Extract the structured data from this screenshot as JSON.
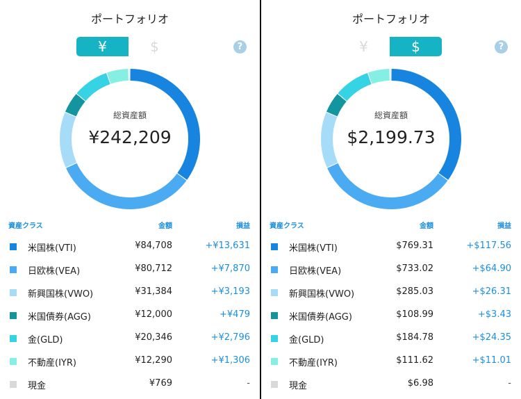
{
  "panels": [
    {
      "title": "ポートフォリオ",
      "toggle": {
        "left_label": "¥",
        "right_label": "$",
        "active": "left"
      },
      "help_label": "?",
      "total_label": "総資産額",
      "total_value": "¥242,209",
      "headers": {
        "asset_class": "資産クラス",
        "amount": "金額",
        "pl": "損益"
      },
      "rows": [
        {
          "name": "米国株(VTI)",
          "amount": "¥84,708",
          "pl": "+¥13,631",
          "color": "#1785e0"
        },
        {
          "name": "日欧株(VEA)",
          "amount": "¥80,712",
          "pl": "+¥7,870",
          "color": "#4aaaf2"
        },
        {
          "name": "新興国株(VWO)",
          "amount": "¥31,384",
          "pl": "+¥3,193",
          "color": "#a6dcf8"
        },
        {
          "name": "米国債券(AGG)",
          "amount": "¥12,000",
          "pl": "+¥479",
          "color": "#13959f"
        },
        {
          "name": "金(GLD)",
          "amount": "¥20,346",
          "pl": "+¥2,796",
          "color": "#35d3e3"
        },
        {
          "name": "不動産(IYR)",
          "amount": "¥12,290",
          "pl": "+¥1,306",
          "color": "#84efe2"
        },
        {
          "name": "現金",
          "amount": "¥769",
          "pl": "-",
          "color": "#d9d9d9"
        }
      ]
    },
    {
      "title": "ポートフォリオ",
      "toggle": {
        "left_label": "¥",
        "right_label": "$",
        "active": "right"
      },
      "help_label": "?",
      "total_label": "総資産額",
      "total_value": "$2,199.73",
      "headers": {
        "asset_class": "資産クラス",
        "amount": "金額",
        "pl": "損益"
      },
      "rows": [
        {
          "name": "米国株(VTI)",
          "amount": "$769.31",
          "pl": "+$117.56",
          "color": "#1785e0"
        },
        {
          "name": "日欧株(VEA)",
          "amount": "$733.02",
          "pl": "+$64.90",
          "color": "#4aaaf2"
        },
        {
          "name": "新興国株(VWO)",
          "amount": "$285.03",
          "pl": "+$26.31",
          "color": "#a6dcf8"
        },
        {
          "name": "米国債券(AGG)",
          "amount": "$108.99",
          "pl": "+$3.43",
          "color": "#13959f"
        },
        {
          "name": "金(GLD)",
          "amount": "$184.78",
          "pl": "+$24.35",
          "color": "#35d3e3"
        },
        {
          "name": "不動産(IYR)",
          "amount": "$111.62",
          "pl": "+$11.01",
          "color": "#84efe2"
        },
        {
          "name": "現金",
          "amount": "$6.98",
          "pl": "-",
          "color": "#d9d9d9"
        }
      ]
    }
  ],
  "donut_values": [
    84708,
    80712,
    31384,
    12000,
    20346,
    12290,
    769
  ]
}
